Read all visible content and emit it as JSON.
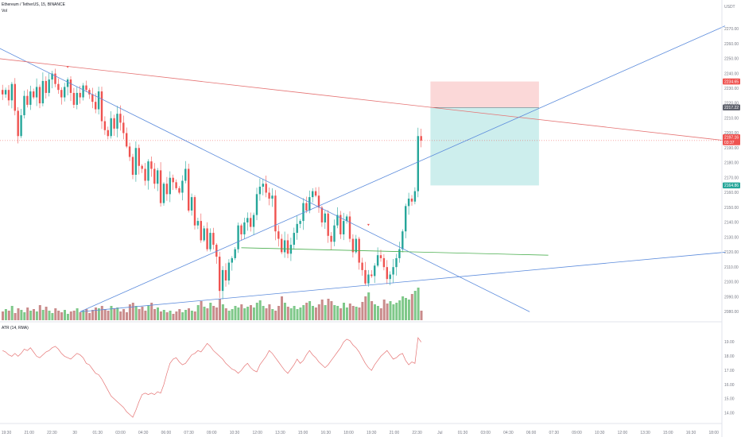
{
  "header": {
    "symbol": "Ethereum / TetherUS, 15, BINANCE",
    "volume_label": "Vol",
    "atr_label": "ATR (14, RMA)"
  },
  "colors": {
    "up": "#26a69a",
    "down": "#ef5350",
    "vol_up": "#7ec889",
    "vol_down": "#c98b8b",
    "trend_blue": "#5b8bdc",
    "trend_red": "#e57373",
    "trend_green": "#4caf50",
    "atr": "#e57373",
    "target_zone": "#cdeeed",
    "stop_zone": "#fbd8d8"
  },
  "chart_data": {
    "type": "candlestick",
    "price_axis": {
      "currency_label": "USDT",
      "ylim": [
        2077,
        2283
      ],
      "ticks": [
        "2270.00",
        "2260.00",
        "2250.00",
        "2240.00",
        "2230.00",
        "2220.00",
        "2210.00",
        "2200.00",
        "2190.00",
        "2180.00",
        "2170.00",
        "2160.00",
        "2150.00",
        "2140.00",
        "2130.00",
        "2120.00",
        "2110.00",
        "2100.00",
        "2090.00",
        "2080.00"
      ]
    },
    "atr_axis": {
      "ylim": [
        13.6,
        19.7
      ],
      "ticks": [
        "19.00",
        "18.00",
        "17.00",
        "16.00",
        "15.00",
        "14.00"
      ]
    },
    "time_axis": {
      "ticks": [
        "19:30",
        "21:00",
        "22:30",
        "30",
        "01:30",
        "03:00",
        "04:30",
        "06:00",
        "07:30",
        "09:00",
        "10:30",
        "12:00",
        "13:30",
        "15:00",
        "16:30",
        "18:00",
        "19:30",
        "21:00",
        "22:30",
        "Jul",
        "01:30",
        "03:00",
        "04:30",
        "06:00",
        "07:30",
        "09:00",
        "10:30",
        "12:00",
        "13:30",
        "15:00",
        "16:30",
        "18:00"
      ]
    },
    "price_badges": [
      {
        "label": "2234.65",
        "value": 2234.65,
        "color": "#ef5350"
      },
      {
        "label": "2217.22",
        "value": 2217.22,
        "color": "#5d606b"
      },
      {
        "label": "2197.16",
        "value": 2197.16,
        "color": "#ef5350"
      },
      {
        "label": "03:37",
        "value": 2193.9,
        "color": "#ef5350"
      },
      {
        "label": "2164.86",
        "value": 2164.86,
        "color": "#26a69a"
      }
    ],
    "position": {
      "entry": 2217.22,
      "stop": 2234.65,
      "target": 2164.86,
      "start_index": 138,
      "end_index": 173
    },
    "open_start": 2229,
    "closes": [
      2226,
      2229,
      2222,
      2233,
      2215,
      2198,
      2212,
      2225,
      2219,
      2228,
      2224,
      2231,
      2220,
      2235,
      2227,
      2236,
      2240,
      2233,
      2229,
      2224,
      2231,
      2236,
      2227,
      2219,
      2227,
      2224,
      2232,
      2229,
      2226,
      2221,
      2216,
      2228,
      2208,
      2202,
      2198,
      2210,
      2203,
      2213,
      2207,
      2200,
      2191,
      2184,
      2172,
      2190,
      2178,
      2176,
      2168,
      2181,
      2176,
      2166,
      2175,
      2153,
      2166,
      2159,
      2170,
      2167,
      2163,
      2160,
      2168,
      2176,
      2148,
      2157,
      2138,
      2141,
      2128,
      2136,
      2122,
      2133,
      2125,
      2117,
      2094,
      2108,
      2101,
      2113,
      2116,
      2122,
      2138,
      2132,
      2140,
      2143,
      2137,
      2145,
      2159,
      2164,
      2166,
      2160,
      2156,
      2158,
      2134,
      2129,
      2120,
      2128,
      2119,
      2125,
      2133,
      2139,
      2141,
      2153,
      2148,
      2157,
      2161,
      2158,
      2150,
      2140,
      2146,
      2131,
      2127,
      2138,
      2145,
      2132,
      2141,
      2144,
      2129,
      2120,
      2129,
      2113,
      2108,
      2099,
      2105,
      2104,
      2111,
      2118,
      2116,
      2110,
      2102,
      2105,
      2110,
      2116,
      2122,
      2134,
      2151,
      2156,
      2154,
      2161,
      2198,
      2195
    ]
  },
  "volume_heights": [
    11,
    14,
    12,
    18,
    9,
    15,
    13,
    10,
    16,
    12,
    14,
    11,
    19,
    13,
    17,
    12,
    9,
    15,
    12,
    10,
    13,
    8,
    11,
    12,
    15,
    10,
    12,
    14,
    9,
    13,
    16,
    15,
    18,
    14,
    12,
    18,
    15,
    16,
    11,
    14,
    10,
    20,
    22,
    18,
    14,
    17,
    12,
    19,
    22,
    14,
    16,
    11,
    13,
    10,
    12,
    8,
    11,
    14,
    10,
    13,
    15,
    12,
    11,
    19,
    24,
    17,
    15,
    22,
    18,
    16,
    27,
    20,
    15,
    12,
    14,
    18,
    16,
    20,
    15,
    17,
    19,
    16,
    22,
    25,
    18,
    15,
    20,
    14,
    12,
    18,
    30,
    22,
    17,
    15,
    18,
    14,
    16,
    19,
    22,
    24,
    18,
    16,
    20,
    26,
    19,
    27,
    24,
    19,
    18,
    15,
    22,
    16,
    21,
    18,
    17,
    16,
    23,
    30,
    35,
    24,
    20,
    18,
    15,
    26,
    21,
    24,
    20,
    22,
    25,
    30,
    28,
    26,
    33,
    37,
    41,
    12
  ],
  "atr_values": [
    18.4,
    18.3,
    18.1,
    18.0,
    18.2,
    18.0,
    18.2,
    18.5,
    18.4,
    18.6,
    18.3,
    18.0,
    17.9,
    18.1,
    18.3,
    18.4,
    18.6,
    18.7,
    18.5,
    18.2,
    18.0,
    17.9,
    17.8,
    18.0,
    18.2,
    18.1,
    17.9,
    17.5,
    17.4,
    17.1,
    16.8,
    16.7,
    16.4,
    16.0,
    15.6,
    15.2,
    15.0,
    14.8,
    14.6,
    14.4,
    14.1,
    13.9,
    13.7,
    14.2,
    14.8,
    15.3,
    15.4,
    15.3,
    15.4,
    15.3,
    15.5,
    15.4,
    16.0,
    16.8,
    17.5,
    17.8,
    17.9,
    17.6,
    17.4,
    17.5,
    17.8,
    18.1,
    18.2,
    18.4,
    18.3,
    18.6,
    18.9,
    18.7,
    18.4,
    18.2,
    18.0,
    17.8,
    17.5,
    17.3,
    17.1,
    17.0,
    16.8,
    17.0,
    17.3,
    17.5,
    17.2,
    17.0,
    16.9,
    17.4,
    17.7,
    18.0,
    18.4,
    18.2,
    17.9,
    17.6,
    17.3,
    17.0,
    16.8,
    17.1,
    17.4,
    17.8,
    17.5,
    17.7,
    18.1,
    18.4,
    18.1,
    17.9,
    17.6,
    17.4,
    17.2,
    17.4,
    17.7,
    18.0,
    18.3,
    18.6,
    19.0,
    19.2,
    19.1,
    18.8,
    18.6,
    18.3,
    17.9,
    17.5,
    17.2,
    17.0,
    17.4,
    17.7,
    18.0,
    18.2,
    18.4,
    18.1,
    17.8,
    17.9,
    18.1,
    18.2,
    17.7,
    17.4,
    17.6,
    17.5,
    19.3,
    19.0
  ]
}
